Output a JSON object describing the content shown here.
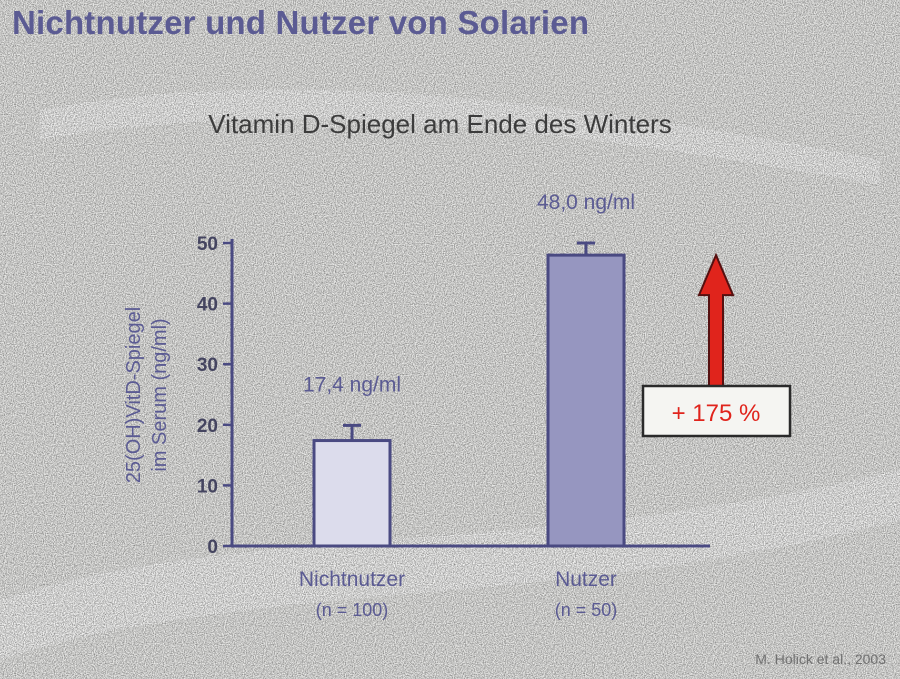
{
  "slide": {
    "title": "Nichtnutzer und Nutzer von Solarien",
    "citation": "M. Holick et al., 2003"
  },
  "chart_data": {
    "type": "bar",
    "title": "Vitamin D-Spiegel am Ende des Winters",
    "ylabel_lines": [
      "25(OH)VitD-Spiegel",
      "im Serum (ng/ml)"
    ],
    "ylim": [
      0,
      50
    ],
    "yticks": [
      0,
      10,
      20,
      30,
      40,
      50
    ],
    "categories": [
      {
        "name": "Nichtnutzer",
        "n": "(n = 100)"
      },
      {
        "name": "Nutzer",
        "n": "(n = 50)"
      }
    ],
    "values": [
      17.4,
      48.0
    ],
    "errors": [
      2.5,
      2.0
    ],
    "value_labels": [
      "17,4 ng/ml",
      "48,0 ng/ml"
    ],
    "annotation": "+ 175 %",
    "grid": false
  },
  "colors": {
    "axis": "#4a4a82",
    "text_purple": "#5b5b93",
    "bar_fill": [
      "#dcdcec",
      "#9696c0"
    ],
    "bar_stroke": "#4a4a82",
    "annotation_text": "#e0241c",
    "arrow": "#e0241c",
    "arrow_stroke": "#551010"
  }
}
